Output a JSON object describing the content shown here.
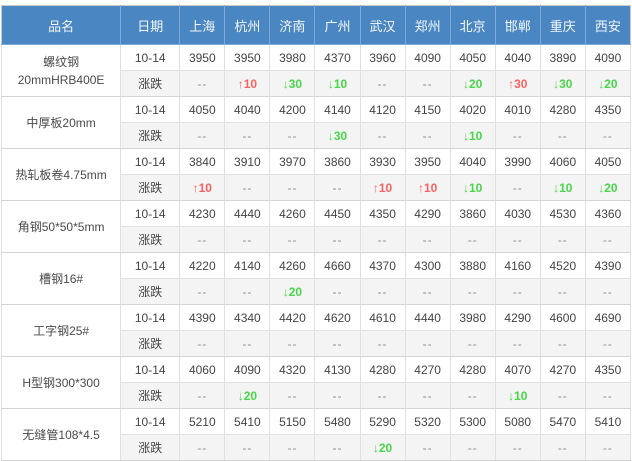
{
  "table": {
    "columns": [
      "品名",
      "日期",
      "上海",
      "杭州",
      "济南",
      "广州",
      "武汉",
      "郑州",
      "北京",
      "邯郸",
      "重庆",
      "西安"
    ],
    "date_label": "10-14",
    "change_label": "涨跌",
    "no_change_symbol": "--",
    "colors": {
      "header_bg": "#4a86c2",
      "header_text": "#f2f7fc",
      "up_red": "#fa6161",
      "down_green": "#47d647",
      "change_row_bg": "#f4f4f4"
    },
    "rows": [
      {
        "name_lines": [
          "螺纹钢",
          "20mmHRB400E"
        ],
        "prices": [
          "3950",
          "3950",
          "3980",
          "4370",
          "3960",
          "4090",
          "4050",
          "4040",
          "3890",
          "4090"
        ],
        "changes": [
          "--",
          "↑10",
          "↓30",
          "↓10",
          "--",
          "--",
          "↓20",
          "↑30",
          "↓30",
          "↓20"
        ]
      },
      {
        "name_lines": [
          "中厚板20mm"
        ],
        "prices": [
          "4050",
          "4040",
          "4200",
          "4140",
          "4120",
          "4150",
          "4020",
          "4010",
          "4280",
          "4350"
        ],
        "changes": [
          "--",
          "--",
          "--",
          "↓30",
          "--",
          "--",
          "↓10",
          "--",
          "--",
          "--"
        ]
      },
      {
        "name_lines": [
          "热轧板卷4.75mm"
        ],
        "prices": [
          "3840",
          "3910",
          "3970",
          "3860",
          "3930",
          "3950",
          "4040",
          "3990",
          "4060",
          "4050"
        ],
        "changes": [
          "↑10",
          "--",
          "--",
          "--",
          "↑10",
          "↑10",
          "↓10",
          "--",
          "↓10",
          "↓20"
        ]
      },
      {
        "name_lines": [
          "角钢50*50*5mm"
        ],
        "prices": [
          "4230",
          "4440",
          "4260",
          "4450",
          "4350",
          "4290",
          "3860",
          "4030",
          "4530",
          "4360"
        ],
        "changes": [
          "--",
          "--",
          "--",
          "--",
          "--",
          "--",
          "--",
          "--",
          "--",
          "--"
        ]
      },
      {
        "name_lines": [
          "槽钢16#"
        ],
        "prices": [
          "4220",
          "4140",
          "4260",
          "4660",
          "4370",
          "4300",
          "3880",
          "4160",
          "4520",
          "4390"
        ],
        "changes": [
          "--",
          "--",
          "↓20",
          "--",
          "--",
          "--",
          "--",
          "--",
          "--",
          "--"
        ]
      },
      {
        "name_lines": [
          "工字钢25#"
        ],
        "prices": [
          "4390",
          "4340",
          "4420",
          "4620",
          "4610",
          "4440",
          "3980",
          "4290",
          "4600",
          "4690"
        ],
        "changes": [
          "--",
          "--",
          "--",
          "--",
          "--",
          "--",
          "--",
          "--",
          "--",
          "--"
        ]
      },
      {
        "name_lines": [
          "H型钢300*300"
        ],
        "prices": [
          "4060",
          "4090",
          "4320",
          "4130",
          "4280",
          "4270",
          "4280",
          "4070",
          "4270",
          "4350"
        ],
        "changes": [
          "--",
          "↓20",
          "--",
          "--",
          "--",
          "--",
          "--",
          "↓10",
          "--",
          "--"
        ]
      },
      {
        "name_lines": [
          "无缝管108*4.5"
        ],
        "prices": [
          "5210",
          "5410",
          "5150",
          "5480",
          "5290",
          "5320",
          "5300",
          "5080",
          "5470",
          "5410"
        ],
        "changes": [
          "--",
          "--",
          "--",
          "--",
          "↓20",
          "--",
          "--",
          "--",
          "--",
          "--"
        ]
      }
    ]
  }
}
